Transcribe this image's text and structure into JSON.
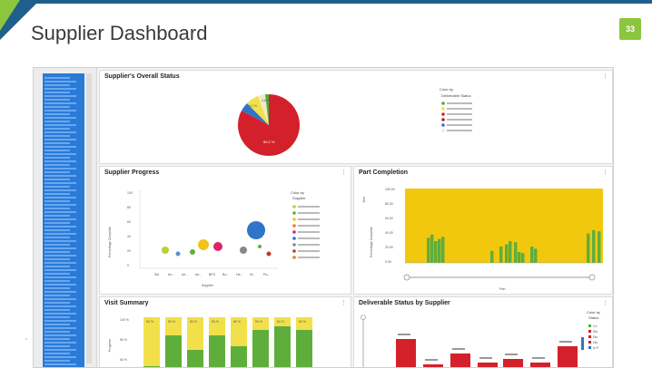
{
  "slide": {
    "title": "Supplier Dashboard",
    "page_number": "33",
    "accent_color": "#8cc63f",
    "brand_color": "#1f5f8b"
  },
  "panels": {
    "overall": {
      "title": "Supplier's Overall Status",
      "legend_title": "Color by",
      "legend_subtitle": "Deliverable Status",
      "slice_labels": [
        "80.2 %",
        "9.2 %",
        "4.6 %"
      ],
      "legend_colors": [
        "#4caf3a",
        "#f2e04a",
        "#d4202a",
        "#c11b26",
        "#2f74c8",
        "#f4e9c6"
      ]
    },
    "progress": {
      "title": "Supplier Progress",
      "ylabel": "Percentage Complete",
      "xlabel": "Supplier",
      "yticks": [
        "100",
        "80",
        "60",
        "40",
        "20",
        "0"
      ],
      "xticks": [
        "3rd",
        "Av...",
        "Ae...",
        "Ae...",
        "BFG",
        "Bo...",
        "Ha...",
        "Hi...",
        "Pa..."
      ],
      "legend_title": "Color by",
      "legend_subtitle": "Supplier",
      "legend_colors": [
        "#b5d334",
        "#5fae3c",
        "#f0c419",
        "#f07a1c",
        "#d9256b",
        "#2f74c8",
        "#888888",
        "#c0392b",
        "#e67e22"
      ]
    },
    "parts": {
      "title": "Part Completion",
      "ylabel": "Percentage Complete",
      "ylabel2": "Year",
      "xlabel": "Part",
      "yticks": [
        "100.00",
        "80.00",
        "60.00",
        "40.00",
        "20.00",
        "0.00"
      ]
    },
    "visits": {
      "title": "Visit Summary",
      "ylabel": "Progress",
      "yticks": [
        "100 %",
        "80 %",
        "60 %"
      ],
      "bar_labels": [
        "50 %",
        "50 %",
        "50 %",
        "50 %",
        "50 %",
        "50 %",
        "50 %",
        "50 %"
      ]
    },
    "deliverables": {
      "title": "Deliverable Status by Supplier",
      "legend_title": "Color by",
      "legend_subtitle": "Status",
      "legend_items": [
        "Co",
        "Dis",
        "Dis",
        "Dis",
        "In P"
      ],
      "legend_colors": [
        "#4caf3a",
        "#d4202a",
        "#d4202a",
        "#d4202a",
        "#2f74c8"
      ]
    }
  }
}
